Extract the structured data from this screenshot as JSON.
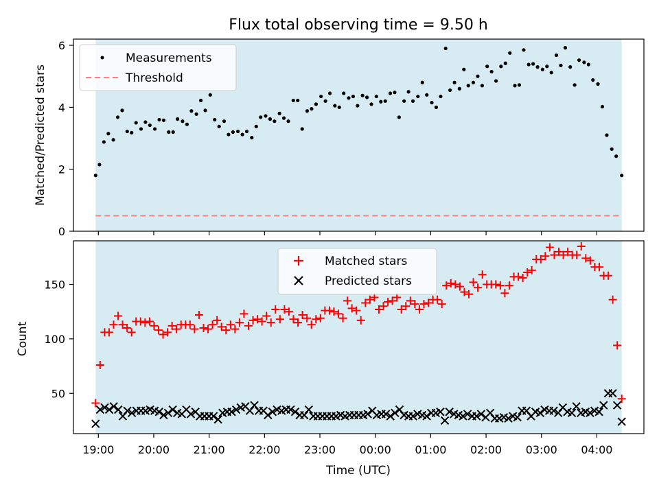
{
  "chart_data": [
    {
      "type": "scatter",
      "title": "Flux total observing time = 9.50 h",
      "xlabel": "",
      "ylabel": "Matched/Predicted stars",
      "ylim": [
        0,
        6.2
      ],
      "yticks": [
        0,
        2,
        4,
        6
      ],
      "xlim_hours": [
        18.55,
        28.85
      ],
      "shaded_span_hours": [
        18.95,
        28.45
      ],
      "shade_color": "#add8e6",
      "grid": false,
      "legend_position": "top-left",
      "series": [
        {
          "name": "Measurements",
          "marker": "dot",
          "color": "#000000",
          "x": [
            18.95,
            19.02,
            19.1,
            19.18,
            19.27,
            19.35,
            19.43,
            19.52,
            19.6,
            19.68,
            19.77,
            19.85,
            19.93,
            20.02,
            20.1,
            20.18,
            20.27,
            20.35,
            20.43,
            20.52,
            20.6,
            20.68,
            20.77,
            20.85,
            20.93,
            21.02,
            21.1,
            21.18,
            21.27,
            21.35,
            21.43,
            21.52,
            21.6,
            21.68,
            21.77,
            21.85,
            21.93,
            22.02,
            22.1,
            22.18,
            22.27,
            22.35,
            22.43,
            22.52,
            22.6,
            22.68,
            22.77,
            22.85,
            22.93,
            23.02,
            23.1,
            23.18,
            23.27,
            23.35,
            23.43,
            23.52,
            23.6,
            23.68,
            23.77,
            23.85,
            23.93,
            24.02,
            24.1,
            24.18,
            24.27,
            24.35,
            24.43,
            24.52,
            24.6,
            24.68,
            24.77,
            24.85,
            24.93,
            25.02,
            25.1,
            25.18,
            25.27,
            25.35,
            25.43,
            25.52,
            25.6,
            25.68,
            25.77,
            25.85,
            25.93,
            26.02,
            26.1,
            26.18,
            26.27,
            26.35,
            26.43,
            26.52,
            26.6,
            26.68,
            26.77,
            26.85,
            26.93,
            27.02,
            27.1,
            27.18,
            27.27,
            27.35,
            27.43,
            27.52,
            27.6,
            27.68,
            27.77,
            27.85,
            27.93,
            28.02,
            28.1,
            28.18,
            28.27,
            28.35,
            28.45
          ],
          "y": [
            1.8,
            2.15,
            2.88,
            3.15,
            2.95,
            3.68,
            3.9,
            3.22,
            3.18,
            3.5,
            3.3,
            3.52,
            3.42,
            3.3,
            3.6,
            3.58,
            3.2,
            3.2,
            3.62,
            3.55,
            3.45,
            3.88,
            3.78,
            4.22,
            3.9,
            4.4,
            3.6,
            3.38,
            3.55,
            3.12,
            3.2,
            3.22,
            3.12,
            3.22,
            3.02,
            3.38,
            3.68,
            3.72,
            3.62,
            3.55,
            3.8,
            3.65,
            3.55,
            4.22,
            4.22,
            3.3,
            3.88,
            3.95,
            4.1,
            4.35,
            4.2,
            4.45,
            4.05,
            4.0,
            4.45,
            4.3,
            4.35,
            4.05,
            4.38,
            4.32,
            4.1,
            4.35,
            4.18,
            4.2,
            4.45,
            4.48,
            3.68,
            4.2,
            4.5,
            4.2,
            4.35,
            4.8,
            4.4,
            4.15,
            4.0,
            4.35,
            5.9,
            4.55,
            4.8,
            4.6,
            5.22,
            4.7,
            4.8,
            5.0,
            4.7,
            5.32,
            5.15,
            4.85,
            5.32,
            5.42,
            5.75,
            4.7,
            4.72,
            5.85,
            5.38,
            5.4,
            5.3,
            5.22,
            5.32,
            5.12,
            5.68,
            5.35,
            5.92,
            5.3,
            4.72,
            5.52,
            5.45,
            5.38,
            4.88,
            4.75,
            4.02,
            3.1,
            2.65,
            2.42,
            1.8
          ]
        },
        {
          "name": "Threshold",
          "marker": "dashed-line",
          "color": "#ff7f7f",
          "y_constant": 0.5
        }
      ]
    },
    {
      "type": "scatter",
      "title": "",
      "xlabel": "Time (UTC)",
      "ylabel": "Count",
      "ylim": [
        13,
        190
      ],
      "yticks": [
        50,
        100,
        150
      ],
      "xticks": [
        "19:00",
        "20:00",
        "21:00",
        "22:00",
        "23:00",
        "00:00",
        "01:00",
        "02:00",
        "03:00",
        "04:00"
      ],
      "xtick_hours": [
        19,
        20,
        21,
        22,
        23,
        24,
        25,
        26,
        27,
        28
      ],
      "grid": false,
      "legend_position": "top-center",
      "series": [
        {
          "name": "Matched stars",
          "marker": "plus",
          "color": "#ff0000",
          "y": [
            41,
            76,
            106,
            106,
            113,
            121,
            113,
            110,
            106,
            116,
            116,
            115,
            116,
            112,
            108,
            104,
            106,
            112,
            109,
            113,
            113,
            113,
            109,
            122,
            110,
            109,
            113,
            117,
            111,
            108,
            113,
            109,
            115,
            123,
            112,
            117,
            118,
            116,
            121,
            115,
            127,
            118,
            127,
            125,
            118,
            115,
            122,
            119,
            113,
            118,
            119,
            126,
            126,
            125,
            123,
            119,
            135,
            128,
            126,
            117,
            133,
            136,
            138,
            127,
            130,
            134,
            135,
            138,
            127,
            130,
            135,
            132,
            127,
            132,
            133,
            136,
            136,
            132,
            149,
            151,
            150,
            148,
            143,
            141,
            152,
            147,
            159,
            150,
            150,
            150,
            149,
            142,
            149,
            157,
            157,
            156,
            161,
            163,
            173,
            173,
            176,
            184,
            177,
            180,
            177,
            180,
            177,
            177,
            185,
            174,
            172,
            166,
            166,
            158,
            158,
            136,
            94,
            45
          ]
        },
        {
          "name": "Predicted stars",
          "marker": "x",
          "color": "#000000",
          "y": [
            22,
            35,
            37,
            35,
            38,
            35,
            29,
            34,
            32,
            34,
            34,
            34,
            35,
            34,
            33,
            30,
            32,
            35,
            32,
            31,
            35,
            31,
            33,
            29,
            29,
            29,
            29,
            26,
            32,
            33,
            33,
            35,
            37,
            38,
            34,
            39,
            34,
            34,
            30,
            33,
            35,
            34,
            35,
            35,
            33,
            30,
            30,
            35,
            29,
            29,
            29,
            29,
            29,
            29,
            30,
            29,
            30,
            30,
            30,
            30,
            31,
            34,
            30,
            31,
            31,
            29,
            32,
            35,
            30,
            29,
            29,
            31,
            30,
            29,
            32,
            32,
            33,
            25,
            33,
            31,
            30,
            29,
            31,
            29,
            29,
            31,
            28,
            32,
            27,
            27,
            28,
            27,
            29,
            28,
            34,
            34,
            29,
            33,
            32,
            35,
            34,
            34,
            32,
            37,
            33,
            32,
            38,
            32,
            33,
            32,
            34,
            33,
            39,
            50,
            50,
            39,
            24
          ]
        }
      ]
    }
  ]
}
